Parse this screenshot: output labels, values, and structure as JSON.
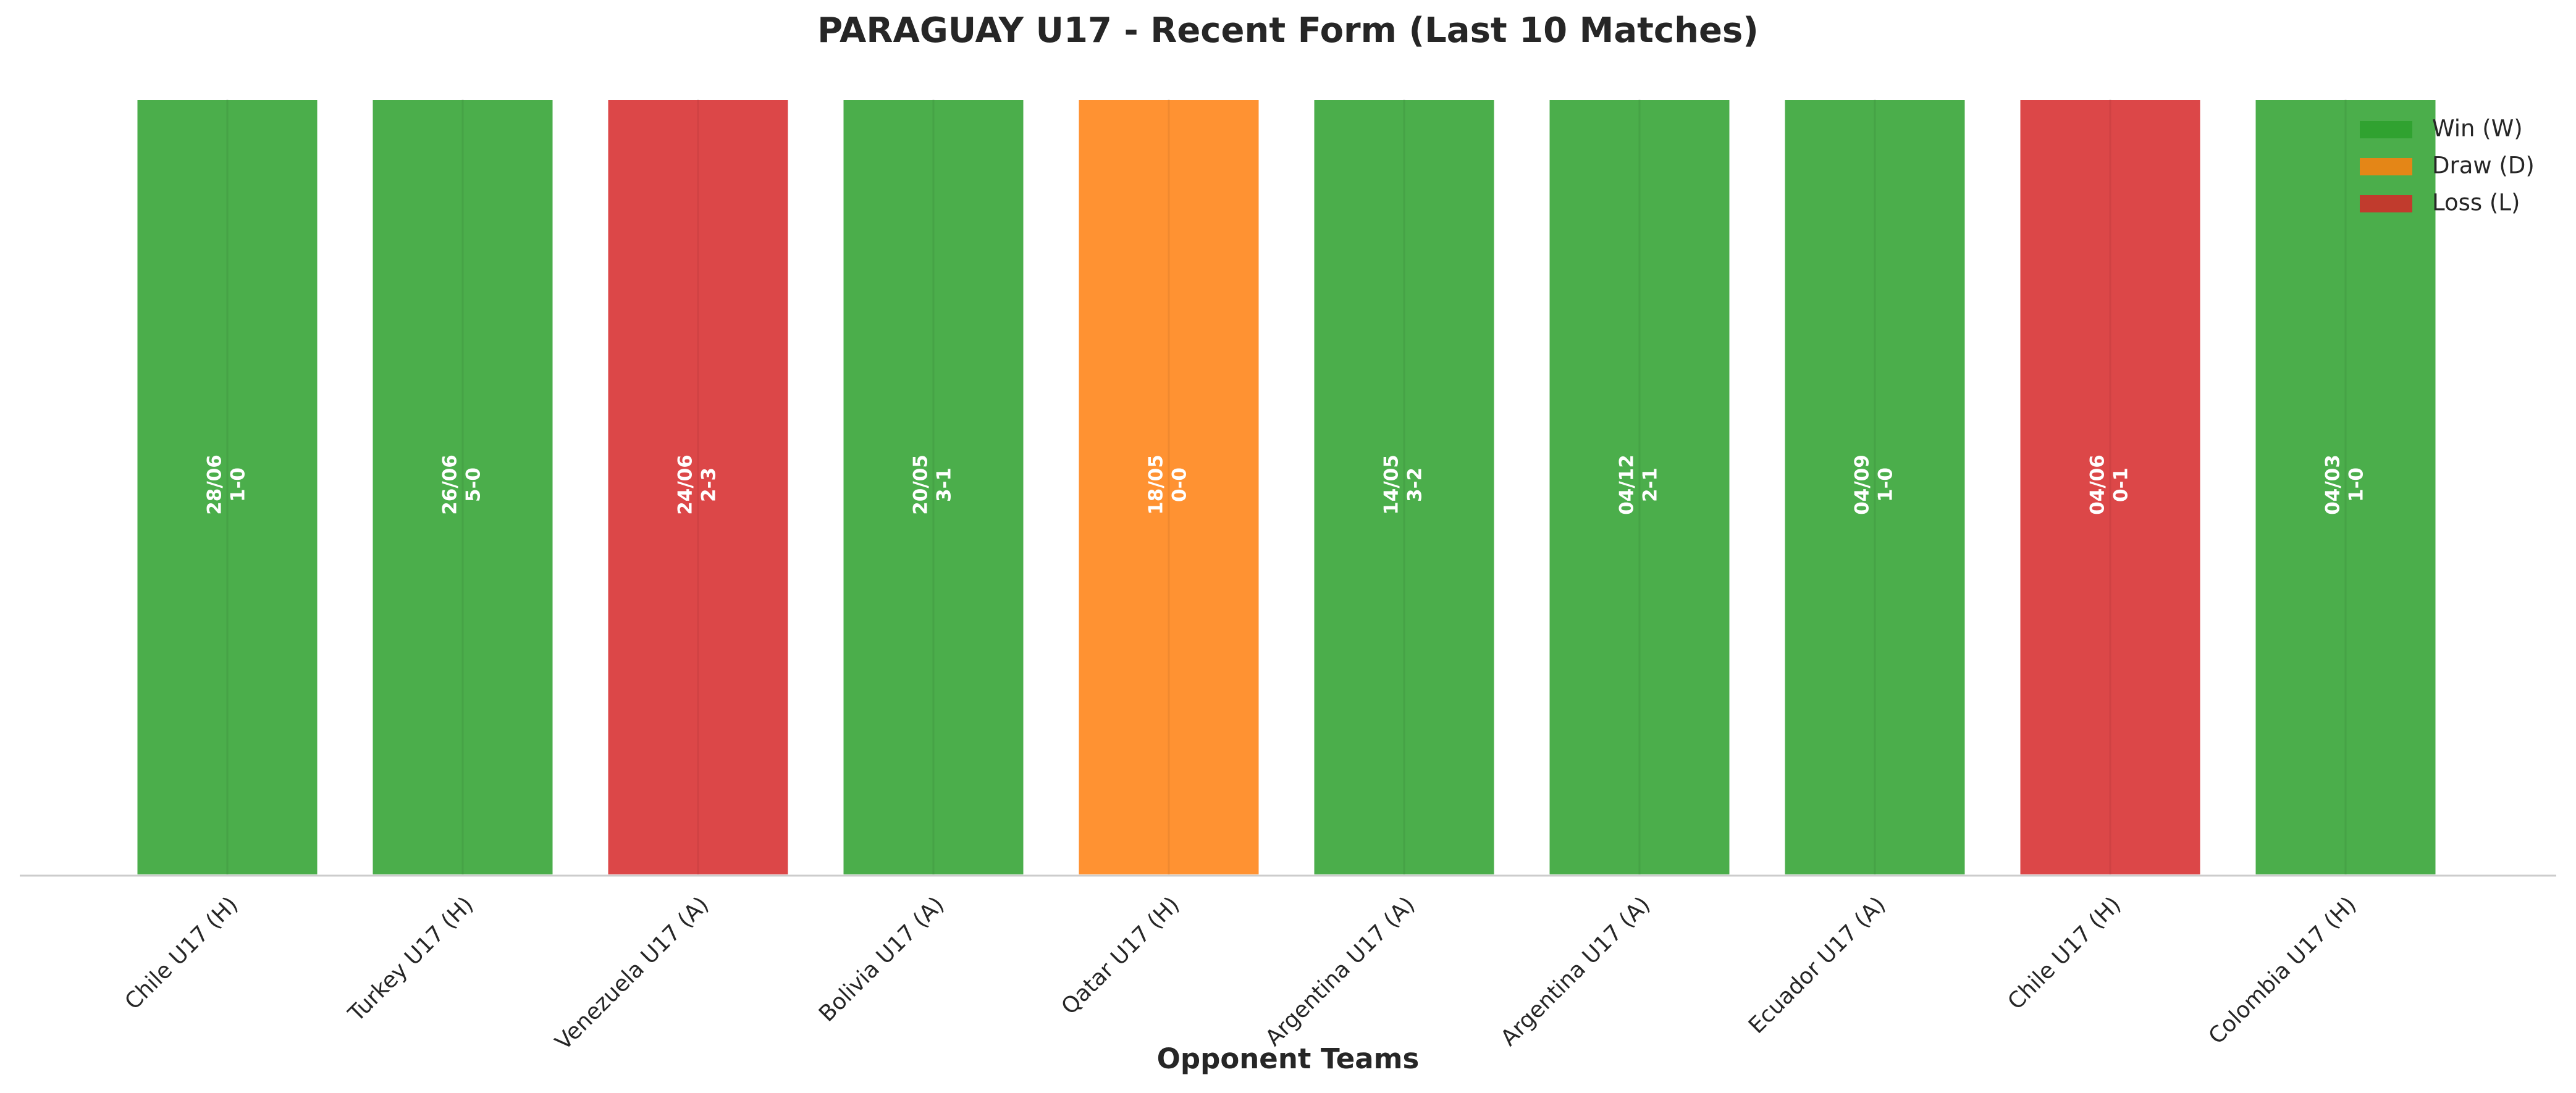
{
  "chart_data": {
    "type": "bar",
    "title": "PARAGUAY U17 - Recent Form (Last 10 Matches)",
    "x_label": "Opponent Teams",
    "categories": [
      "Chile U17 (H)",
      "Turkey U17 (H)",
      "Venezuela U17 (A)",
      "Bolivia U17 (A)",
      "Qatar U17 (H)",
      "Argentina U17 (A)",
      "Argentina U17 (A)",
      "Ecuador U17 (A)",
      "Chile U17 (H)",
      "Colombia U17 (H)"
    ],
    "values": [
      1,
      1,
      1,
      1,
      1,
      1,
      1,
      1,
      1,
      1
    ],
    "ylim": [
      0,
      1
    ],
    "dates": [
      "28/06",
      "26/06",
      "24/06",
      "20/05",
      "18/05",
      "14/05",
      "04/12",
      "04/09",
      "04/06",
      "04/03"
    ],
    "scores": [
      "1-0",
      "5-0",
      "2-3",
      "3-1",
      "0-0",
      "3-2",
      "2-1",
      "1-0",
      "0-1",
      "1-0"
    ],
    "results": [
      "W",
      "W",
      "L",
      "W",
      "D",
      "W",
      "W",
      "W",
      "L",
      "W"
    ],
    "legend": [
      {
        "key": "W",
        "name": "Win (W)",
        "color": "#2ca02c"
      },
      {
        "key": "D",
        "name": "Draw (D)",
        "color": "#ff7f0e"
      },
      {
        "key": "L",
        "name": "Loss (L)",
        "color": "#d62728"
      }
    ],
    "legend_position": "upper right",
    "grid": true
  }
}
